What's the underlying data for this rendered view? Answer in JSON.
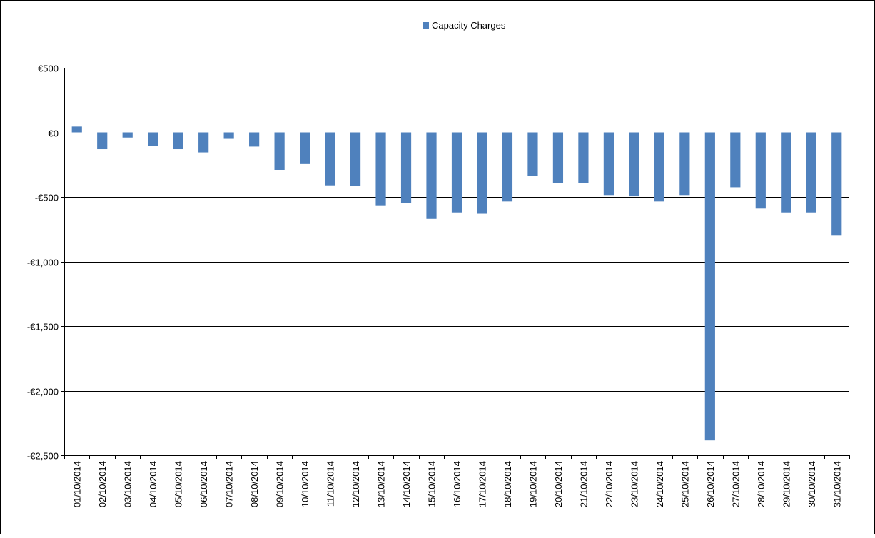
{
  "chart_data": {
    "type": "bar",
    "title": "",
    "xlabel": "",
    "ylabel": "",
    "legend": {
      "position": "top-center",
      "entries": [
        "Capacity Charges"
      ]
    },
    "grid": true,
    "ylim": [
      -2500,
      500
    ],
    "yticks": [
      500,
      0,
      -500,
      -1000,
      -1500,
      -2000,
      -2500
    ],
    "ytick_labels": [
      "€500",
      "€0",
      "-€500",
      "-€1,000",
      "-€1,500",
      "-€2,000",
      "-€2,500"
    ],
    "categories": [
      "01/10/2014",
      "02/10/2014",
      "03/10/2014",
      "04/10/2014",
      "05/10/2014",
      "06/10/2014",
      "07/10/2014",
      "08/10/2014",
      "09/10/2014",
      "10/10/2014",
      "11/10/2014",
      "12/10/2014",
      "13/10/2014",
      "14/10/2014",
      "15/10/2014",
      "16/10/2014",
      "17/10/2014",
      "18/10/2014",
      "19/10/2014",
      "20/10/2014",
      "21/10/2014",
      "22/10/2014",
      "23/10/2014",
      "24/10/2014",
      "25/10/2014",
      "26/10/2014",
      "27/10/2014",
      "28/10/2014",
      "29/10/2014",
      "30/10/2014",
      "31/10/2014"
    ],
    "series": [
      {
        "name": "Capacity Charges",
        "color": "#4F81BD",
        "values": [
          45,
          -130,
          -40,
          -105,
          -130,
          -155,
          -50,
          -110,
          -290,
          -245,
          -410,
          -415,
          -570,
          -545,
          -670,
          -620,
          -630,
          -535,
          -335,
          -390,
          -390,
          -485,
          -495,
          -535,
          -485,
          -2385,
          -425,
          -590,
          -620,
          -620,
          -800
        ]
      }
    ]
  }
}
